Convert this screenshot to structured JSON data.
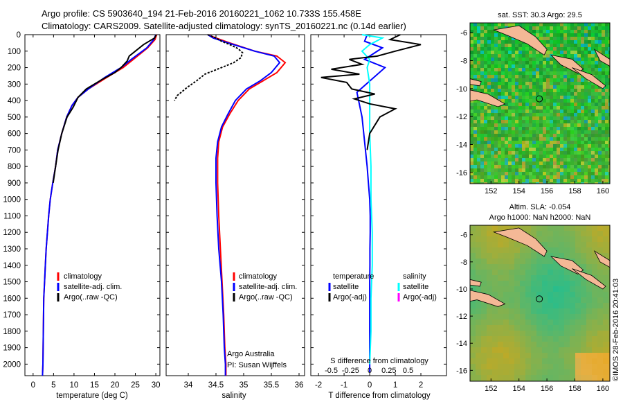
{
  "header": {
    "line1": "Argo profile: CS 5903640_194 21-Feb-2016 20160221_1062 10.733S 155.458E",
    "line2": "Climatology: CARS2009. Satellite-adjusted climatology: synTS_20160221.nc (0.14d earlier)"
  },
  "colors": {
    "climatology": "#ff0000",
    "satellite": "#0000ff",
    "argo": "#000000",
    "satellite_s": "#00ffff",
    "argo_s": "#ff00ff",
    "land": "#f4b896"
  },
  "depth_axis": {
    "ticks": [
      0,
      100,
      200,
      300,
      400,
      500,
      600,
      700,
      800,
      900,
      1000,
      1100,
      1200,
      1300,
      1400,
      1500,
      1600,
      1700,
      1800,
      1900,
      2000
    ],
    "min": 0,
    "max": 2070
  },
  "chart_data": [
    {
      "type": "line",
      "panel": "temperature",
      "xlabel": "temperature (deg C)",
      "xlim": [
        -2,
        31
      ],
      "xticks": [
        0,
        5,
        10,
        15,
        20,
        25,
        30
      ],
      "legend": [
        "climatology",
        "satellite-adj. clim.",
        "Argo(..raw -QC)"
      ],
      "legend_placement": "lower-left",
      "series": [
        {
          "name": "climatology",
          "x": [
            30.2,
            29.8,
            28.0,
            24.5,
            22.0,
            18.0,
            13.5,
            11.0,
            9.5,
            8.2,
            7.0,
            6.0,
            5.5,
            4.8,
            4.2,
            3.8,
            3.5,
            3.2,
            3.0,
            2.8,
            2.6,
            2.5,
            2.4,
            2.3
          ],
          "depth": [
            0,
            30,
            80,
            150,
            200,
            260,
            330,
            380,
            430,
            500,
            600,
            700,
            800,
            900,
            1000,
            1100,
            1200,
            1300,
            1400,
            1500,
            1600,
            1800,
            2000,
            2070
          ]
        },
        {
          "name": "satellite-adj. clim.",
          "x": [
            30.0,
            29.5,
            27.8,
            24.0,
            21.5,
            17.5,
            13.5,
            11.0,
            9.5,
            8.2,
            7.0,
            6.0,
            5.5,
            4.8,
            4.2,
            3.8,
            3.5,
            3.2,
            3.0,
            2.8,
            2.6,
            2.5,
            2.4,
            2.3
          ],
          "depth": [
            0,
            30,
            80,
            150,
            200,
            260,
            330,
            380,
            430,
            500,
            600,
            700,
            800,
            900,
            1000,
            1100,
            1200,
            1300,
            1400,
            1500,
            1600,
            1800,
            2000,
            2070
          ]
        },
        {
          "name": "Argo(..raw -QC)",
          "x": [
            30.1,
            29.7,
            27.0,
            25.0,
            23.5,
            23.0,
            21.5,
            20.0,
            17.0,
            13.0,
            11.0,
            9.8,
            8.3,
            7.0,
            6.1,
            5.5,
            4.9
          ],
          "depth": [
            0,
            20,
            60,
            100,
            130,
            160,
            200,
            230,
            270,
            330,
            380,
            440,
            500,
            600,
            700,
            800,
            900
          ]
        }
      ]
    },
    {
      "type": "line",
      "panel": "salinity",
      "xlabel": "salinity",
      "xlim": [
        33.6,
        36.1
      ],
      "xticks": [
        34,
        34.5,
        35,
        35.5,
        36
      ],
      "legend": [
        "climatology",
        "satellite-adj. clim.",
        "Argo(..raw -QC)"
      ],
      "legend_placement": "lower-right",
      "annotation": [
        "Argo Australia",
        "PI: Susan Wijffels"
      ],
      "series": [
        {
          "name": "climatology",
          "x": [
            34.35,
            34.5,
            34.75,
            35.2,
            35.6,
            35.75,
            35.6,
            35.35,
            35.1,
            34.9,
            34.75,
            34.62,
            34.55,
            34.53,
            34.53,
            34.55,
            34.58,
            34.61,
            34.64,
            34.66,
            34.68,
            34.68
          ],
          "depth": [
            0,
            20,
            50,
            100,
            130,
            170,
            230,
            280,
            330,
            400,
            480,
            560,
            650,
            750,
            900,
            1100,
            1300,
            1500,
            1700,
            1900,
            2000,
            2070
          ]
        },
        {
          "name": "satellite-adj. clim.",
          "x": [
            34.35,
            34.45,
            34.72,
            35.2,
            35.55,
            35.65,
            35.5,
            35.3,
            35.05,
            34.85,
            34.72,
            34.6,
            34.53,
            34.5,
            34.5,
            34.52,
            34.55,
            34.6,
            34.63,
            34.65,
            34.67,
            34.67
          ],
          "depth": [
            0,
            20,
            50,
            100,
            130,
            170,
            230,
            280,
            330,
            400,
            480,
            560,
            650,
            750,
            900,
            1100,
            1300,
            1500,
            1700,
            1900,
            2000,
            2070
          ]
        },
        {
          "name": "Argo(..raw -QC)",
          "x": [
            34.35,
            34.5,
            34.6,
            34.75,
            34.9,
            34.98,
            34.95,
            34.82,
            34.6,
            34.3,
            34.15,
            33.98,
            33.8,
            33.75
          ],
          "depth": [
            0,
            20,
            40,
            60,
            85,
            110,
            140,
            170,
            200,
            240,
            280,
            320,
            370,
            400
          ]
        }
      ]
    },
    {
      "type": "line",
      "panel": "difference",
      "xlabel": "T difference from climatology",
      "xlabel_top": "S difference from climatology",
      "xlim": [
        -2.3,
        3.0
      ],
      "xticks": [
        -2,
        -1,
        0,
        1,
        2
      ],
      "s_ticks": [
        "-0.5",
        "-0.25",
        "0",
        "0.25",
        "0.5"
      ],
      "legend_left_title": "temperature",
      "legend_right_title": "salinity",
      "legend": [
        "satellite",
        "Argo(-adj)",
        "satellite",
        "Argo(-adj)"
      ],
      "series": [
        {
          "name": "satellite",
          "x": [
            -0.1,
            -0.2,
            0.5,
            0.2,
            -0.2,
            0.6,
            -0.5,
            -0.3,
            -0.2,
            -0.1,
            -0.05,
            0.0,
            0.02,
            0.02,
            0.01,
            0.01,
            0.0,
            0.0,
            0.0,
            0.0
          ],
          "depth": [
            0,
            40,
            80,
            110,
            150,
            200,
            350,
            500,
            650,
            800,
            900,
            1000,
            1100,
            1200,
            1300,
            1400,
            1500,
            1700,
            1900,
            2050
          ]
        },
        {
          "name": "satellite S",
          "x": [
            -0.3,
            0.5,
            0.0,
            -0.3,
            0.0,
            -0.1,
            0.0,
            0.0,
            0.0,
            0.05,
            0.05,
            0.1,
            0.1,
            0.05,
            0.05,
            0.0
          ],
          "depth": [
            0,
            20,
            60,
            100,
            150,
            200,
            300,
            400,
            600,
            800,
            1000,
            1200,
            1400,
            1600,
            1800,
            2000
          ]
        },
        {
          "name": "Argo(-adj)",
          "x": [
            1.2,
            0.8,
            2.0,
            1.0,
            0.3,
            -0.8,
            -0.3,
            -1.5,
            -0.4,
            -1.9,
            -0.9,
            -0.7,
            0.2,
            -0.6,
            0.0,
            1.0,
            0.4,
            0.0,
            -0.1
          ],
          "depth": [
            0,
            30,
            60,
            100,
            130,
            150,
            180,
            210,
            240,
            260,
            290,
            330,
            360,
            390,
            420,
            450,
            500,
            600,
            700
          ]
        }
      ]
    },
    {
      "type": "heatmap",
      "panel": "map-sst",
      "title": "sat. SST: 30.3 Argo: 29.5",
      "xticks": [
        152,
        154,
        156,
        158,
        160
      ],
      "yticks": [
        -6,
        -8,
        -10,
        -12,
        -14,
        -16
      ],
      "xlim": [
        150.5,
        160.5
      ],
      "ylim": [
        -16.8,
        -5.3
      ],
      "marker": {
        "lon": 155.458,
        "lat": -10.733
      }
    },
    {
      "type": "heatmap",
      "panel": "map-sla",
      "title_line1": "Altim. SLA: -0.054",
      "title_line2": "Argo h1000: NaN h2000: NaN",
      "xticks": [
        152,
        154,
        156,
        158,
        160
      ],
      "yticks": [
        -6,
        -8,
        -10,
        -12,
        -14,
        -16
      ],
      "xlim": [
        150.5,
        160.5
      ],
      "ylim": [
        -16.8,
        -5.3
      ],
      "marker": {
        "lon": 155.458,
        "lat": -10.733
      }
    }
  ],
  "credit": "©IMOS 28-Feb-2016 20:41:03"
}
